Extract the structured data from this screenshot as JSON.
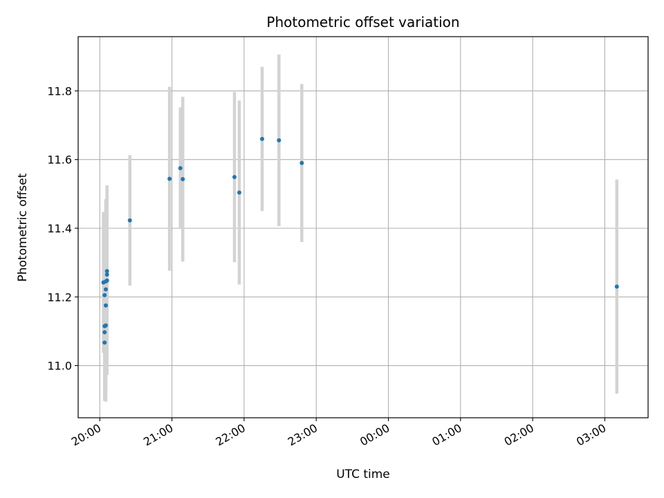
{
  "chart_data": {
    "type": "scatter",
    "title": "Photometric offset variation",
    "xlabel": "UTC time",
    "ylabel": "Photometric offset",
    "x_axis": "time",
    "x_ticks": [
      "20:00",
      "21:00",
      "22:00",
      "23:00",
      "00:00",
      "01:00",
      "02:00",
      "03:00"
    ],
    "xlim": [
      "19:42",
      "03:36"
    ],
    "y_ticks": [
      "11.0",
      "11.2",
      "11.4",
      "11.6",
      "11.8"
    ],
    "ylim": [
      10.848,
      11.958
    ],
    "grid": true,
    "point_color": "#1f77b4",
    "errorbar_color": "#d3d3d3",
    "series": [
      {
        "points": [
          {
            "x": "20:03",
            "y": 11.242,
            "yerr": 0.205
          },
          {
            "x": "20:04",
            "y": 11.205,
            "yerr": 0.16
          },
          {
            "x": "20:04",
            "y": 11.097,
            "yerr": 0.135
          },
          {
            "x": "20:04",
            "y": 11.067,
            "yerr": 0.17
          },
          {
            "x": "20:04",
            "y": 11.115,
            "yerr": 0.215
          },
          {
            "x": "20:05",
            "y": 11.117,
            "yerr": 0.18
          },
          {
            "x": "20:05",
            "y": 11.245,
            "yerr": 0.24
          },
          {
            "x": "20:05",
            "y": 11.175,
            "yerr": 0.28
          },
          {
            "x": "20:05",
            "y": 11.222,
            "yerr": 0.25
          },
          {
            "x": "20:06",
            "y": 11.248,
            "yerr": 0.275
          },
          {
            "x": "20:06",
            "y": 11.275,
            "yerr": 0.25
          },
          {
            "x": "20:06",
            "y": 11.265,
            "yerr": 0.235
          },
          {
            "x": "20:25",
            "y": 11.423,
            "yerr": 0.19
          },
          {
            "x": "20:58",
            "y": 11.544,
            "yerr": 0.268
          },
          {
            "x": "21:07",
            "y": 11.575,
            "yerr": 0.177
          },
          {
            "x": "21:09",
            "y": 11.543,
            "yerr": 0.24
          },
          {
            "x": "21:52",
            "y": 11.549,
            "yerr": 0.248
          },
          {
            "x": "21:56",
            "y": 11.504,
            "yerr": 0.268
          },
          {
            "x": "22:15",
            "y": 11.66,
            "yerr": 0.21
          },
          {
            "x": "22:29",
            "y": 11.656,
            "yerr": 0.25
          },
          {
            "x": "22:48",
            "y": 11.59,
            "yerr": 0.23
          },
          {
            "x": "03:10",
            "y": 11.23,
            "yerr": 0.312
          }
        ]
      }
    ]
  }
}
